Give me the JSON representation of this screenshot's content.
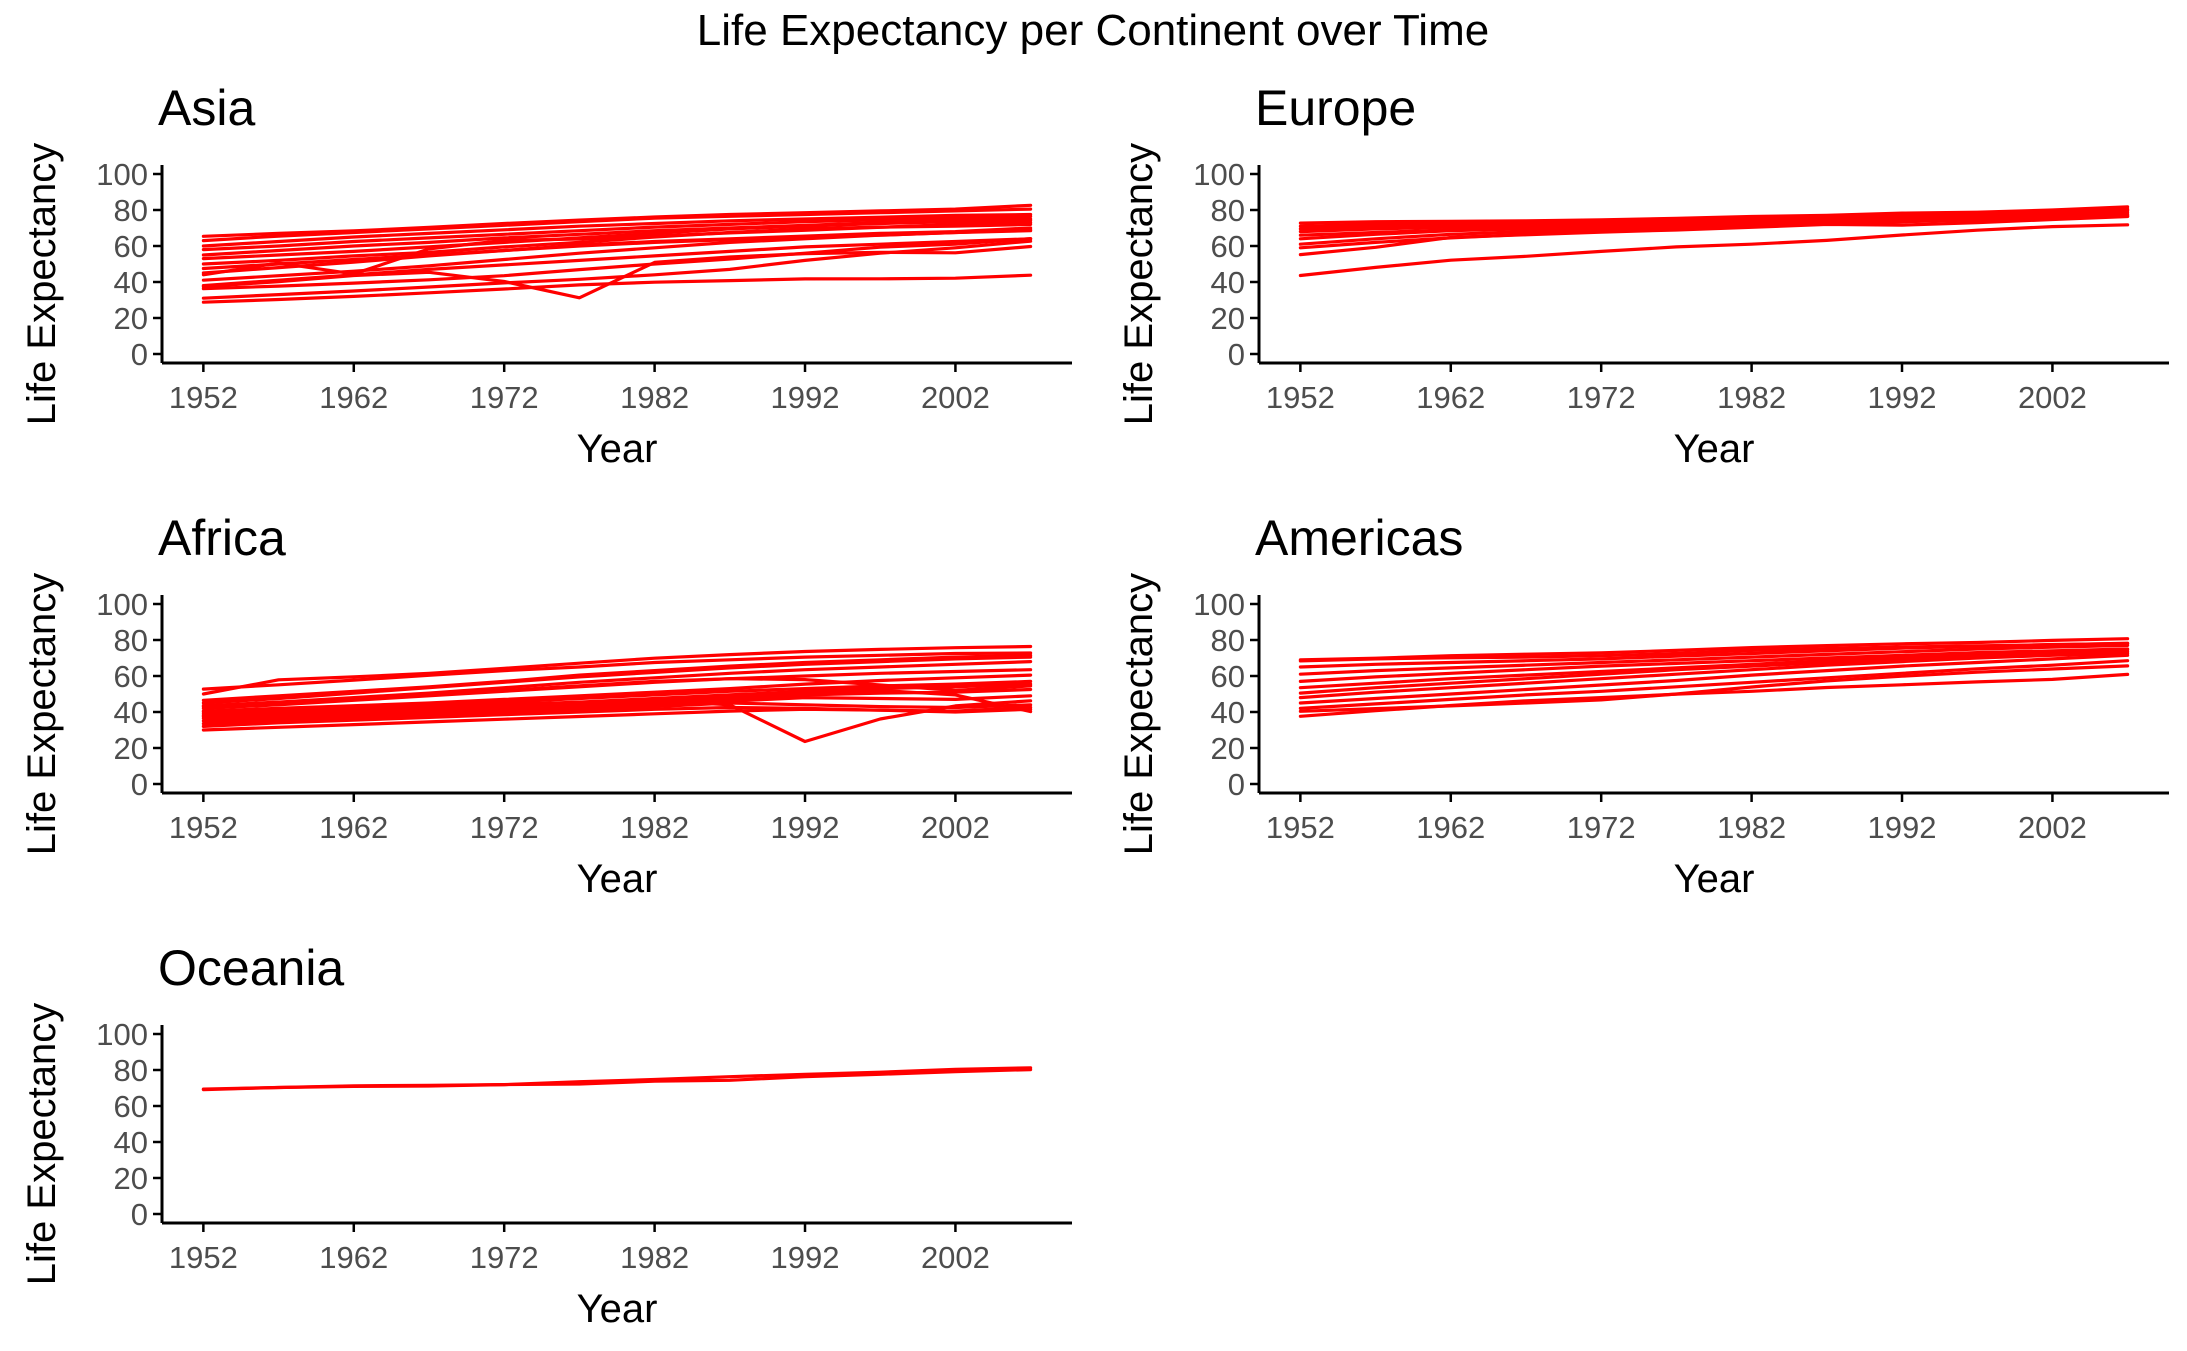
{
  "title": "Life Expectancy per Continent over Time",
  "colors": {
    "line": "#ff0000",
    "axis": "#000000",
    "tick_text": "#4d4d4d",
    "text": "#000000"
  },
  "chart_data": [
    {
      "type": "line",
      "title": "Asia",
      "xlabel": "Year",
      "ylabel": "Life Expectancy",
      "xlim": [
        1949.25,
        2009.75
      ],
      "ylim": [
        -5,
        105
      ],
      "xticks": [
        1952,
        1962,
        1972,
        1982,
        1992,
        2002
      ],
      "yticks": [
        0,
        20,
        40,
        60,
        80,
        100
      ],
      "grid": false,
      "x": [
        1952,
        1957,
        1962,
        1967,
        1972,
        1977,
        1982,
        1987,
        1992,
        1997,
        2002,
        2007
      ],
      "series": [
        {
          "values": [
            28.8,
            30.3,
            32.0,
            34.0,
            36.1,
            38.4,
            39.9,
            40.8,
            41.7,
            41.8,
            42.1,
            43.8
          ]
        },
        {
          "values": [
            31.0,
            33.0,
            35.0,
            37.2,
            39.5,
            41.5,
            44.0,
            47.0,
            52.0,
            56.0,
            59.0,
            62.7
          ]
        },
        {
          "values": [
            37.4,
            40.2,
            43.6,
            45.4,
            40.3,
            31.2,
            50.9,
            53.9,
            55.8,
            56.5,
            56.2,
            59.7
          ]
        },
        {
          "values": [
            36.3,
            37.7,
            39.4,
            41.2,
            43.5,
            46.9,
            50.0,
            52.8,
            56.0,
            59.4,
            61.0,
            64.1
          ]
        },
        {
          "values": [
            38.0,
            41.0,
            44.0,
            47.0,
            49.5,
            52.0,
            54.5,
            57.0,
            59.5,
            61.0,
            62.5,
            64.0
          ]
        },
        {
          "values": [
            41.0,
            43.5,
            46.0,
            49.0,
            52.5,
            56.0,
            59.0,
            62.0,
            64.0,
            66.0,
            67.5,
            69.0
          ]
        },
        {
          "values": [
            44.0,
            50.5,
            44.5,
            58.4,
            63.1,
            63.9,
            65.5,
            67.3,
            68.7,
            70.4,
            72.0,
            73.0
          ]
        },
        {
          "values": [
            45.0,
            48.0,
            51.0,
            54.5,
            57.5,
            60.5,
            62.5,
            64.0,
            65.5,
            67.0,
            68.0,
            70.0
          ]
        },
        {
          "values": [
            47.5,
            50.0,
            52.5,
            55.0,
            57.5,
            60.0,
            62.0,
            63.5,
            65.0,
            66.0,
            67.5,
            68.5
          ]
        },
        {
          "values": [
            50.0,
            52.0,
            54.5,
            56.5,
            59.5,
            62.0,
            65.0,
            67.5,
            69.5,
            70.5,
            71.0,
            72.0
          ]
        },
        {
          "values": [
            53.0,
            55.0,
            57.0,
            59.5,
            62.0,
            64.5,
            67.0,
            69.5,
            71.0,
            72.5,
            73.5,
            74.2
          ]
        },
        {
          "values": [
            55.0,
            57.5,
            60.0,
            62.0,
            64.5,
            66.5,
            68.5,
            70.0,
            71.5,
            73.0,
            74.0,
            75.0
          ]
        },
        {
          "values": [
            58.0,
            60.0,
            62.5,
            64.5,
            66.5,
            68.5,
            70.5,
            72.0,
            73.5,
            74.5,
            75.5,
            76.5
          ]
        },
        {
          "values": [
            60.0,
            62.5,
            65.0,
            67.0,
            69.0,
            71.0,
            72.5,
            74.0,
            75.0,
            76.0,
            77.0,
            77.5
          ]
        },
        {
          "values": [
            63.0,
            65.5,
            67.5,
            69.5,
            71.5,
            73.5,
            75.5,
            76.5,
            77.5,
            78.5,
            79.5,
            80.5
          ]
        },
        {
          "values": [
            65.4,
            67.0,
            68.4,
            70.4,
            72.5,
            74.4,
            76.1,
            77.5,
            78.5,
            79.5,
            80.5,
            82.6
          ]
        }
      ]
    },
    {
      "type": "line",
      "title": "Europe",
      "xlabel": "Year",
      "ylabel": "Life Expectancy",
      "xlim": [
        1949.25,
        2009.75
      ],
      "ylim": [
        -5,
        105
      ],
      "xticks": [
        1952,
        1962,
        1972,
        1982,
        1992,
        2002
      ],
      "yticks": [
        0,
        20,
        40,
        60,
        80,
        100
      ],
      "grid": false,
      "x": [
        1952,
        1957,
        1962,
        1967,
        1972,
        1977,
        1982,
        1987,
        1992,
        1997,
        2002,
        2007
      ],
      "series": [
        {
          "values": [
            43.6,
            48.1,
            52.1,
            54.3,
            57.0,
            59.5,
            61.0,
            63.1,
            66.1,
            68.8,
            70.8,
            71.8
          ]
        },
        {
          "values": [
            55.2,
            59.3,
            64.8,
            66.2,
            67.7,
            68.9,
            70.4,
            72.0,
            71.6,
            73.0,
            74.7,
            76.4
          ]
        },
        {
          "values": [
            59.0,
            62.0,
            64.5,
            66.5,
            68.0,
            69.5,
            71.0,
            72.5,
            73.5,
            74.5,
            75.5,
            76.5
          ]
        },
        {
          "values": [
            61.0,
            64.0,
            66.5,
            68.0,
            69.5,
            70.5,
            71.5,
            72.5,
            73.5,
            75.0,
            76.5,
            77.5
          ]
        },
        {
          "values": [
            64.0,
            66.5,
            68.5,
            69.5,
            70.5,
            71.5,
            72.5,
            73.5,
            74.5,
            75.5,
            76.5,
            77.0
          ]
        },
        {
          "values": [
            66.0,
            67.5,
            69.0,
            70.0,
            71.0,
            72.0,
            73.0,
            74.0,
            75.5,
            76.5,
            77.5,
            78.5
          ]
        },
        {
          "values": [
            68.0,
            69.5,
            70.5,
            71.5,
            72.5,
            73.5,
            74.5,
            75.5,
            76.5,
            77.5,
            78.5,
            79.5
          ]
        },
        {
          "values": [
            69.5,
            70.5,
            71.5,
            72.0,
            73.0,
            74.0,
            75.0,
            76.0,
            77.0,
            78.0,
            79.0,
            80.0
          ]
        },
        {
          "values": [
            71.0,
            72.0,
            72.5,
            73.0,
            73.5,
            74.5,
            75.5,
            76.5,
            77.5,
            78.5,
            79.5,
            80.5
          ]
        },
        {
          "values": [
            72.7,
            73.5,
            73.7,
            74.0,
            74.5,
            75.4,
            76.4,
            77.0,
            78.3,
            78.8,
            80.0,
            81.8
          ]
        }
      ]
    },
    {
      "type": "line",
      "title": "Africa",
      "xlabel": "Year",
      "ylabel": "Life Expectancy",
      "xlim": [
        1949.25,
        2009.75
      ],
      "ylim": [
        -5,
        105
      ],
      "xticks": [
        1952,
        1962,
        1972,
        1982,
        1992,
        2002
      ],
      "yticks": [
        0,
        20,
        40,
        60,
        80,
        100
      ],
      "grid": false,
      "x": [
        1952,
        1957,
        1962,
        1967,
        1972,
        1977,
        1982,
        1987,
        1992,
        1997,
        2002,
        2007
      ],
      "series": [
        {
          "values": [
            40.0,
            41.5,
            43.0,
            44.5,
            44.6,
            45.0,
            46.2,
            44.0,
            23.6,
            36.1,
            43.4,
            46.2
          ]
        },
        {
          "values": [
            30.0,
            31.5,
            33.0,
            34.5,
            36.0,
            37.5,
            39.0,
            40.5,
            41.5,
            41.0,
            40.5,
            42.6
          ]
        },
        {
          "values": [
            32.0,
            34.0,
            35.5,
            37.0,
            38.5,
            40.0,
            41.5,
            42.5,
            42.0,
            41.0,
            40.0,
            41.5
          ]
        },
        {
          "values": [
            33.5,
            35.0,
            36.5,
            38.0,
            39.5,
            41.5,
            43.0,
            45.0,
            44.0,
            43.0,
            42.5,
            44.0
          ]
        },
        {
          "values": [
            35.0,
            36.5,
            38.0,
            39.5,
            41.0,
            42.5,
            44.0,
            46.0,
            48.0,
            47.5,
            47.0,
            49.0
          ]
        },
        {
          "values": [
            36.5,
            38.0,
            39.5,
            41.0,
            42.5,
            44.0,
            45.5,
            47.5,
            49.5,
            50.5,
            51.0,
            52.5
          ]
        },
        {
          "values": [
            37.5,
            39.5,
            41.0,
            42.5,
            44.0,
            45.5,
            47.5,
            49.5,
            51.5,
            53.0,
            54.0,
            55.5
          ]
        },
        {
          "values": [
            39.0,
            40.5,
            42.0,
            43.5,
            45.5,
            47.5,
            49.5,
            51.5,
            53.0,
            54.5,
            55.5,
            57.0
          ]
        },
        {
          "values": [
            40.5,
            42.0,
            43.5,
            45.0,
            47.0,
            49.0,
            51.0,
            53.0,
            55.5,
            57.5,
            59.0,
            60.5
          ]
        },
        {
          "values": [
            42.0,
            44.0,
            46.5,
            49.0,
            51.5,
            54.0,
            56.5,
            58.5,
            60.0,
            61.5,
            62.5,
            63.5
          ]
        },
        {
          "values": [
            43.5,
            45.5,
            48.0,
            50.5,
            53.5,
            56.5,
            59.0,
            61.5,
            63.5,
            65.0,
            66.5,
            68.0
          ]
        },
        {
          "values": [
            45.0,
            47.5,
            50.5,
            53.5,
            56.5,
            59.5,
            62.0,
            64.5,
            66.5,
            68.0,
            69.5,
            70.5
          ]
        },
        {
          "values": [
            46.5,
            49.0,
            51.5,
            54.0,
            57.0,
            60.5,
            63.0,
            65.5,
            67.5,
            69.0,
            70.5,
            71.5
          ]
        },
        {
          "values": [
            52.7,
            55.1,
            57.7,
            60.4,
            63.0,
            65.0,
            67.5,
            69.0,
            70.5,
            71.5,
            72.5,
            72.8
          ]
        },
        {
          "values": [
            50.0,
            57.9,
            59.5,
            61.5,
            64.3,
            67.1,
            69.9,
            71.9,
            73.6,
            74.8,
            75.7,
            76.4
          ]
        },
        {
          "values": [
            43.0,
            45.0,
            47.0,
            49.5,
            52.0,
            54.5,
            57.0,
            58.5,
            58.0,
            55.0,
            52.0,
            54.5
          ]
        },
        {
          "values": [
            38.0,
            39.5,
            41.0,
            42.5,
            43.0,
            44.0,
            46.5,
            49.0,
            51.0,
            52.0,
            49.5,
            40.2
          ]
        }
      ]
    },
    {
      "type": "line",
      "title": "Americas",
      "xlabel": "Year",
      "ylabel": "Life Expectancy",
      "xlim": [
        1949.25,
        2009.75
      ],
      "ylim": [
        -5,
        105
      ],
      "xticks": [
        1952,
        1962,
        1972,
        1982,
        1992,
        2002
      ],
      "yticks": [
        0,
        20,
        40,
        60,
        80,
        100
      ],
      "grid": false,
      "x": [
        1952,
        1957,
        1962,
        1967,
        1972,
        1977,
        1982,
        1987,
        1992,
        1997,
        2002,
        2007
      ],
      "series": [
        {
          "values": [
            37.6,
            40.7,
            43.6,
            46.2,
            48.0,
            49.9,
            51.5,
            53.6,
            55.1,
            56.7,
            58.1,
            60.9
          ]
        },
        {
          "values": [
            40.4,
            41.9,
            43.4,
            45.0,
            46.7,
            50.0,
            53.9,
            57.3,
            59.9,
            62.1,
            63.9,
            65.6
          ]
        },
        {
          "values": [
            42.0,
            44.5,
            47.0,
            49.5,
            51.5,
            54.0,
            56.5,
            59.0,
            61.5,
            64.0,
            66.0,
            68.5
          ]
        },
        {
          "values": [
            45.0,
            47.5,
            50.0,
            52.5,
            55.0,
            57.5,
            60.5,
            63.0,
            65.5,
            67.5,
            69.5,
            71.5
          ]
        },
        {
          "values": [
            48.0,
            51.0,
            53.5,
            56.0,
            58.5,
            61.0,
            63.5,
            66.0,
            68.0,
            70.0,
            71.5,
            72.5
          ]
        },
        {
          "values": [
            50.5,
            53.5,
            56.0,
            58.5,
            61.0,
            63.5,
            65.5,
            67.5,
            69.5,
            71.0,
            72.5,
            73.5
          ]
        },
        {
          "values": [
            53.5,
            56.0,
            58.5,
            60.5,
            62.5,
            64.5,
            66.5,
            68.5,
            70.5,
            72.0,
            73.5,
            74.5
          ]
        },
        {
          "values": [
            57.0,
            59.5,
            61.5,
            63.5,
            65.5,
            67.0,
            68.5,
            70.0,
            71.5,
            73.0,
            74.0,
            75.0
          ]
        },
        {
          "values": [
            61.0,
            63.0,
            64.5,
            66.0,
            67.5,
            69.0,
            70.5,
            72.0,
            73.5,
            75.0,
            76.0,
            77.0
          ]
        },
        {
          "values": [
            65.0,
            66.5,
            67.5,
            68.5,
            69.5,
            71.0,
            72.5,
            74.0,
            75.5,
            76.5,
            77.5,
            78.0
          ]
        },
        {
          "values": [
            68.4,
            69.5,
            70.1,
            70.5,
            71.3,
            72.5,
            74.2,
            75.2,
            76.1,
            76.8,
            77.3,
            78.2
          ]
        },
        {
          "values": [
            69.0,
            69.9,
            71.3,
            72.1,
            72.9,
            74.2,
            75.8,
            76.9,
            77.9,
            78.6,
            79.8,
            80.7
          ]
        }
      ]
    },
    {
      "type": "line",
      "title": "Oceania",
      "xlabel": "Year",
      "ylabel": "Life Expectancy",
      "xlim": [
        1949.25,
        2009.75
      ],
      "ylim": [
        -5,
        105
      ],
      "xticks": [
        1952,
        1962,
        1972,
        1982,
        1992,
        2002
      ],
      "yticks": [
        0,
        20,
        40,
        60,
        80,
        100
      ],
      "grid": false,
      "x": [
        1952,
        1957,
        1962,
        1967,
        1972,
        1977,
        1982,
        1987,
        1992,
        1997,
        2002,
        2007
      ],
      "series": [
        {
          "values": [
            69.1,
            70.3,
            70.9,
            71.1,
            71.9,
            73.5,
            74.7,
            76.3,
            77.6,
            78.8,
            80.4,
            81.2
          ]
        },
        {
          "values": [
            69.4,
            70.3,
            71.2,
            71.5,
            71.9,
            72.2,
            73.8,
            74.3,
            76.3,
            77.6,
            79.1,
            80.2
          ]
        }
      ]
    }
  ]
}
